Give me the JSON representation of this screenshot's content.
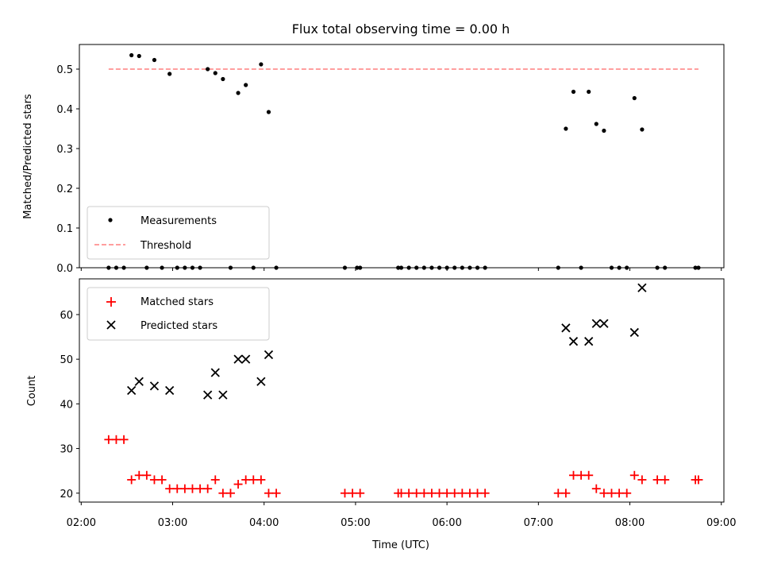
{
  "chart_data": [
    {
      "type": "scatter",
      "title": "Flux total observing time = 0.00 h",
      "xlabel": "",
      "ylabel": "Matched/Predicted stars",
      "xlim": [
        "02:00",
        "09:00"
      ],
      "ylim": [
        0,
        0.55
      ],
      "ytick_labels": [
        "0.0",
        "0.1",
        "0.2",
        "0.3",
        "0.4",
        "0.5"
      ],
      "xtick_labels": [],
      "legend": {
        "placement": "lower-left",
        "entries": [
          "Measurements",
          "Threshold"
        ]
      },
      "threshold": {
        "name": "Threshold",
        "value": 0.5,
        "x_range": [
          "02:18",
          "08:45"
        ],
        "color": "#ff7f7f"
      },
      "series": [
        {
          "name": "Measurements",
          "color": "#000000",
          "points": [
            [
              "02:18",
              0
            ],
            [
              "02:23",
              0
            ],
            [
              "02:28",
              0
            ],
            [
              "02:33",
              0.535
            ],
            [
              "02:38",
              0.533
            ],
            [
              "02:43",
              0
            ],
            [
              "02:48",
              0.523
            ],
            [
              "02:53",
              0
            ],
            [
              "02:58",
              0.488
            ],
            [
              "03:03",
              0
            ],
            [
              "03:08",
              0
            ],
            [
              "03:13",
              0
            ],
            [
              "03:18",
              0
            ],
            [
              "03:23",
              0.5
            ],
            [
              "03:28",
              0.49
            ],
            [
              "03:33",
              0.475
            ],
            [
              "03:38",
              0
            ],
            [
              "03:43",
              0.44
            ],
            [
              "03:48",
              0.46
            ],
            [
              "03:53",
              0
            ],
            [
              "03:58",
              0.512
            ],
            [
              "04:03",
              0.392
            ],
            [
              "04:08",
              0
            ],
            [
              "04:53",
              0
            ],
            [
              "05:01",
              0
            ],
            [
              "05:03",
              0
            ],
            [
              "05:28",
              0
            ],
            [
              "05:30",
              0
            ],
            [
              "05:35",
              0
            ],
            [
              "05:40",
              0
            ],
            [
              "05:45",
              0
            ],
            [
              "05:50",
              0
            ],
            [
              "05:55",
              0
            ],
            [
              "06:00",
              0
            ],
            [
              "06:05",
              0
            ],
            [
              "06:10",
              0
            ],
            [
              "06:15",
              0
            ],
            [
              "06:20",
              0
            ],
            [
              "06:25",
              0
            ],
            [
              "07:13",
              0
            ],
            [
              "07:18",
              0.35
            ],
            [
              "07:23",
              0.443
            ],
            [
              "07:28",
              0
            ],
            [
              "07:33",
              0.443
            ],
            [
              "07:38",
              0.362
            ],
            [
              "07:43",
              0.345
            ],
            [
              "07:48",
              0
            ],
            [
              "07:53",
              0
            ],
            [
              "07:58",
              0
            ],
            [
              "08:03",
              0.427
            ],
            [
              "08:08",
              0.348
            ],
            [
              "08:18",
              0
            ],
            [
              "08:23",
              0
            ],
            [
              "08:43",
              0
            ],
            [
              "08:45",
              0
            ]
          ]
        }
      ]
    },
    {
      "type": "scatter",
      "title": "",
      "xlabel": "Time (UTC)",
      "ylabel": "Count",
      "xlim": [
        "02:00",
        "09:00"
      ],
      "ylim": [
        18,
        68
      ],
      "ytick_labels": [
        "20",
        "30",
        "40",
        "50",
        "60"
      ],
      "xtick_labels": [
        "02:00",
        "03:00",
        "04:00",
        "05:00",
        "06:00",
        "07:00",
        "08:00",
        "09:00"
      ],
      "legend": {
        "placement": "upper-left",
        "entries": [
          "Matched stars",
          "Predicted stars"
        ]
      },
      "series": [
        {
          "name": "Matched stars",
          "marker": "plus",
          "color": "#ff0000",
          "points": [
            [
              "02:18",
              32
            ],
            [
              "02:23",
              32
            ],
            [
              "02:28",
              32
            ],
            [
              "02:33",
              23
            ],
            [
              "02:38",
              24
            ],
            [
              "02:43",
              24
            ],
            [
              "02:48",
              23
            ],
            [
              "02:53",
              23
            ],
            [
              "02:58",
              21
            ],
            [
              "03:03",
              21
            ],
            [
              "03:08",
              21
            ],
            [
              "03:13",
              21
            ],
            [
              "03:18",
              21
            ],
            [
              "03:23",
              21
            ],
            [
              "03:28",
              23
            ],
            [
              "03:33",
              20
            ],
            [
              "03:38",
              20
            ],
            [
              "03:43",
              22
            ],
            [
              "03:48",
              23
            ],
            [
              "03:53",
              23
            ],
            [
              "03:58",
              23
            ],
            [
              "04:03",
              20
            ],
            [
              "04:08",
              20
            ],
            [
              "04:53",
              20
            ],
            [
              "04:58",
              20
            ],
            [
              "05:03",
              20
            ],
            [
              "05:28",
              20
            ],
            [
              "05:30",
              20
            ],
            [
              "05:35",
              20
            ],
            [
              "05:40",
              20
            ],
            [
              "05:45",
              20
            ],
            [
              "05:50",
              20
            ],
            [
              "05:55",
              20
            ],
            [
              "06:00",
              20
            ],
            [
              "06:05",
              20
            ],
            [
              "06:10",
              20
            ],
            [
              "06:15",
              20
            ],
            [
              "06:20",
              20
            ],
            [
              "06:25",
              20
            ],
            [
              "07:13",
              20
            ],
            [
              "07:18",
              20
            ],
            [
              "07:23",
              24
            ],
            [
              "07:28",
              24
            ],
            [
              "07:33",
              24
            ],
            [
              "07:38",
              21
            ],
            [
              "07:43",
              20
            ],
            [
              "07:48",
              20
            ],
            [
              "07:53",
              20
            ],
            [
              "07:58",
              20
            ],
            [
              "08:03",
              24
            ],
            [
              "08:08",
              23
            ],
            [
              "08:18",
              23
            ],
            [
              "08:23",
              23
            ],
            [
              "08:43",
              23
            ],
            [
              "08:45",
              23
            ]
          ]
        },
        {
          "name": "Predicted stars",
          "marker": "x",
          "color": "#000000",
          "points": [
            [
              "02:33",
              43
            ],
            [
              "02:38",
              45
            ],
            [
              "02:48",
              44
            ],
            [
              "02:58",
              43
            ],
            [
              "03:23",
              42
            ],
            [
              "03:28",
              47
            ],
            [
              "03:33",
              42
            ],
            [
              "03:43",
              50
            ],
            [
              "03:48",
              50
            ],
            [
              "03:58",
              45
            ],
            [
              "04:03",
              51
            ],
            [
              "07:18",
              57
            ],
            [
              "07:23",
              54
            ],
            [
              "07:33",
              54
            ],
            [
              "07:38",
              58
            ],
            [
              "07:43",
              58
            ],
            [
              "08:03",
              56
            ],
            [
              "08:08",
              66
            ]
          ]
        }
      ]
    }
  ]
}
